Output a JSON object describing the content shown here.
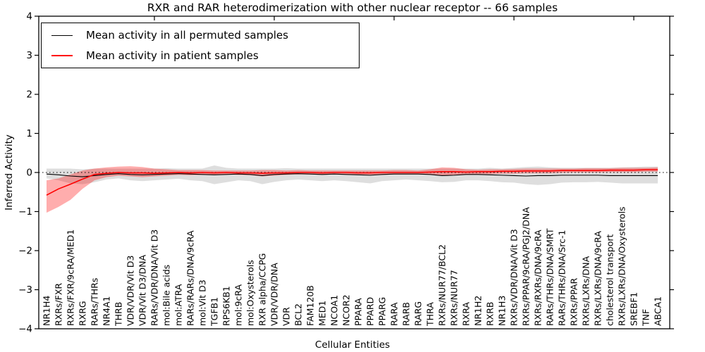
{
  "chart_data": {
    "type": "line",
    "title": "RXR and RAR heterodimerization with other nuclear receptor -- 66 samples",
    "xlabel": "Cellular Entities",
    "ylabel": "Inferred Activity",
    "ylim": [
      -4,
      4
    ],
    "yticks": [
      -4,
      -3,
      -2,
      -1,
      0,
      1,
      2,
      3,
      4
    ],
    "yticklabels": [
      "−4",
      "−3",
      "−2",
      "−1",
      "0",
      "1",
      "2",
      "3",
      "4"
    ],
    "grid": false,
    "zero_line_style": "dotted",
    "legend_position": "upper left",
    "top_tick_indices": [
      9,
      19,
      29,
      39,
      49
    ],
    "categories": [
      "NR1H4",
      "RXRs/FXR",
      "RXRs/FXR/9cRA/MED1",
      "RXRG",
      "RARs/THRs",
      "NR4A1",
      "THRB",
      "VDR/VDR/Vit D3",
      "VDR/Vit D3/DNA",
      "RARs/VDR/DNA/Vit D3",
      "mol:Bile acids",
      "mol:ATRA",
      "RARs/RARs/DNA/9cRA",
      "mol:Vit D3",
      "TGFB1",
      "RPS6KB1",
      "mol:9cRA",
      "mol:Oxysterols",
      "RXR alpha/CCPG",
      "VDR/VDR/DNA",
      "VDR",
      "BCL2",
      "FAM120B",
      "MED1",
      "NCOA1",
      "NCOR2",
      "PPARA",
      "PPARD",
      "PPARG",
      "RARA",
      "RARB",
      "RARG",
      "THRA",
      "RXRs/NUR77/BCL2",
      "RXRs/NUR77",
      "RXRA",
      "NR1H2",
      "RXRB",
      "NR1H3",
      "RXRs/VDR/DNA/Vit D3",
      "RXRs/PPAR/9cRA/PGJ2/DNA",
      "RXRs/RXRs/DNA/9cRA",
      "RARs/THRs/DNA/SMRT",
      "RARs/THRs/DNA/Src-1",
      "RXRs/PPAR",
      "RXRs/LXRs/DNA",
      "RXRs/LXRs/DNA/9cRA",
      "cholesterol transport",
      "RXRs/LXRs/DNA/Oxysterols",
      "SREBF1",
      "TNF",
      "ABCA1"
    ],
    "series": [
      {
        "name": "Mean activity in all permuted samples",
        "color": "#000000",
        "band_color": "rgba(0,0,0,0.13)",
        "values": [
          -0.04,
          -0.06,
          -0.09,
          -0.11,
          -0.08,
          -0.05,
          -0.03,
          -0.05,
          -0.06,
          -0.05,
          -0.04,
          -0.03,
          -0.04,
          -0.05,
          -0.06,
          -0.05,
          -0.04,
          -0.05,
          -0.08,
          -0.05,
          -0.04,
          -0.03,
          -0.04,
          -0.05,
          -0.04,
          -0.05,
          -0.06,
          -0.07,
          -0.05,
          -0.04,
          -0.04,
          -0.04,
          -0.05,
          -0.08,
          -0.07,
          -0.05,
          -0.05,
          -0.06,
          -0.07,
          -0.08,
          -0.09,
          -0.08,
          -0.08,
          -0.07,
          -0.07,
          -0.07,
          -0.07,
          -0.08,
          -0.08,
          -0.08,
          -0.08,
          -0.08
        ],
        "band_high": [
          0.1,
          0.1,
          0.1,
          0.08,
          0.1,
          0.1,
          0.1,
          0.1,
          0.1,
          0.1,
          0.11,
          0.1,
          0.1,
          0.1,
          0.18,
          0.12,
          0.1,
          0.1,
          0.1,
          0.1,
          0.11,
          0.1,
          0.1,
          0.1,
          0.1,
          0.1,
          0.1,
          0.1,
          0.1,
          0.1,
          0.1,
          0.1,
          0.1,
          0.1,
          0.1,
          0.1,
          0.1,
          0.12,
          0.1,
          0.12,
          0.14,
          0.15,
          0.13,
          0.12,
          0.12,
          0.12,
          0.12,
          0.12,
          0.13,
          0.14,
          0.15,
          0.15
        ],
        "band_low": [
          -0.15,
          -0.2,
          -0.28,
          -0.3,
          -0.25,
          -0.18,
          -0.15,
          -0.2,
          -0.22,
          -0.2,
          -0.18,
          -0.16,
          -0.2,
          -0.22,
          -0.3,
          -0.25,
          -0.2,
          -0.22,
          -0.3,
          -0.24,
          -0.2,
          -0.18,
          -0.2,
          -0.22,
          -0.2,
          -0.22,
          -0.25,
          -0.28,
          -0.22,
          -0.2,
          -0.18,
          -0.2,
          -0.22,
          -0.25,
          -0.24,
          -0.2,
          -0.2,
          -0.22,
          -0.25,
          -0.26,
          -0.3,
          -0.32,
          -0.3,
          -0.26,
          -0.25,
          -0.25,
          -0.24,
          -0.26,
          -0.28,
          -0.28,
          -0.28,
          -0.28
        ]
      },
      {
        "name": "Mean activity in patient samples",
        "color": "#ff0000",
        "band_color": "rgba(255,0,0,0.32)",
        "values": [
          -0.58,
          -0.42,
          -0.3,
          -0.17,
          -0.05,
          -0.02,
          0.0,
          -0.01,
          -0.01,
          -0.02,
          -0.01,
          0.0,
          -0.01,
          0.0,
          -0.01,
          0.0,
          -0.01,
          -0.01,
          -0.02,
          -0.01,
          -0.01,
          0.0,
          0.0,
          -0.01,
          0.0,
          0.0,
          -0.01,
          -0.01,
          0.0,
          0.0,
          0.0,
          0.0,
          0.01,
          0.02,
          0.02,
          0.01,
          0.02,
          0.02,
          0.03,
          0.03,
          0.04,
          0.04,
          0.04,
          0.05,
          0.05,
          0.05,
          0.05,
          0.06,
          0.06,
          0.06,
          0.07,
          0.07
        ],
        "band_high": [
          -0.2,
          -0.15,
          -0.05,
          0.05,
          0.1,
          0.13,
          0.15,
          0.16,
          0.14,
          0.1,
          0.08,
          0.06,
          0.06,
          0.06,
          0.05,
          0.05,
          0.05,
          0.05,
          0.06,
          0.06,
          0.05,
          0.06,
          0.05,
          0.05,
          0.05,
          0.05,
          0.05,
          0.05,
          0.05,
          0.06,
          0.06,
          0.05,
          0.08,
          0.13,
          0.12,
          0.08,
          0.07,
          0.08,
          0.08,
          0.09,
          0.1,
          0.1,
          0.1,
          0.1,
          0.1,
          0.11,
          0.11,
          0.11,
          0.12,
          0.12,
          0.12,
          0.13
        ],
        "band_low": [
          -1.03,
          -0.88,
          -0.7,
          -0.42,
          -0.2,
          -0.12,
          -0.08,
          -0.1,
          -0.12,
          -0.1,
          -0.08,
          -0.06,
          -0.07,
          -0.06,
          -0.07,
          -0.05,
          -0.06,
          -0.07,
          -0.1,
          -0.08,
          -0.06,
          -0.05,
          -0.05,
          -0.06,
          -0.05,
          -0.05,
          -0.06,
          -0.07,
          -0.06,
          -0.05,
          -0.05,
          -0.05,
          -0.05,
          -0.08,
          -0.06,
          -0.05,
          -0.04,
          -0.04,
          -0.03,
          -0.03,
          -0.02,
          -0.02,
          -0.02,
          -0.01,
          0.0,
          0.0,
          0.0,
          0.01,
          0.01,
          0.01,
          0.02,
          0.02
        ]
      }
    ]
  }
}
